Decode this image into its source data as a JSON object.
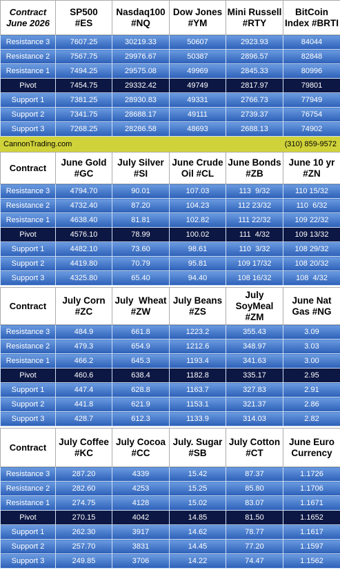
{
  "tables": [
    {
      "header": [
        [
          "Contract",
          "June 2026"
        ],
        [
          "SP500",
          "#ES"
        ],
        [
          "Nasdaq100",
          "#NQ"
        ],
        [
          "Dow Jones",
          "#YM"
        ],
        [
          "Mini Russell",
          "#RTY"
        ],
        [
          "BitCoin",
          "Index #BRTI"
        ]
      ],
      "rows": [
        {
          "label": "Resistance 3",
          "values": [
            "7607.25",
            "30219.33",
            "50607",
            "2923.93",
            "84044"
          ]
        },
        {
          "label": "Resistance 2",
          "values": [
            "7567.75",
            "29976.67",
            "50387",
            "2896.57",
            "82848"
          ]
        },
        {
          "label": "Resistance 1",
          "values": [
            "7494.25",
            "29575.08",
            "49969",
            "2845.33",
            "80996"
          ]
        },
        {
          "label": "Pivot",
          "values": [
            "7454.75",
            "29332.42",
            "49749",
            "2817.97",
            "79801"
          ]
        },
        {
          "label": "Support 1",
          "values": [
            "7381.25",
            "28930.83",
            "49331",
            "2766.73",
            "77949"
          ]
        },
        {
          "label": "Support 2",
          "values": [
            "7341.75",
            "28688.17",
            "49111",
            "2739.37",
            "76754"
          ]
        },
        {
          "label": "Support 3",
          "values": [
            "7268.25",
            "28286.58",
            "48693",
            "2688.13",
            "74902"
          ]
        }
      ]
    },
    {
      "header": [
        [
          "Contract"
        ],
        [
          "June Gold",
          "#GC"
        ],
        [
          "July Silver",
          "#SI"
        ],
        [
          "June Crude",
          "Oil #CL"
        ],
        [
          "June Bonds",
          "#ZB"
        ],
        [
          "June 10 yr",
          "#ZN"
        ]
      ],
      "rows": [
        {
          "label": "Resistance 3",
          "values": [
            "4794.70",
            "90.01",
            "107.03",
            "113  9/32",
            "110 15/32"
          ]
        },
        {
          "label": "Resistance 2",
          "values": [
            "4732.40",
            "87.20",
            "104.23",
            "112 23/32",
            "110  6/32"
          ]
        },
        {
          "label": "Resistance 1",
          "values": [
            "4638.40",
            "81.81",
            "102.82",
            "111 22/32",
            "109 22/32"
          ]
        },
        {
          "label": "Pivot",
          "values": [
            "4576.10",
            "78.99",
            "100.02",
            "111  4/32",
            "109 13/32"
          ]
        },
        {
          "label": "Support 1",
          "values": [
            "4482.10",
            "73.60",
            "98.61",
            "110  3/32",
            "108 29/32"
          ]
        },
        {
          "label": "Support 2",
          "values": [
            "4419.80",
            "70.79",
            "95.81",
            "109 17/32",
            "108 20/32"
          ]
        },
        {
          "label": "Support 3",
          "values": [
            "4325.80",
            "65.40",
            "94.40",
            "108 16/32",
            "108  4/32"
          ]
        }
      ]
    },
    {
      "header": [
        [
          "Contract"
        ],
        [
          "July Corn",
          "#ZC"
        ],
        [
          "July  Wheat",
          "#ZW"
        ],
        [
          "July Beans",
          "#ZS"
        ],
        [
          "July",
          "SoyMeal",
          "#ZM"
        ],
        [
          "June Nat",
          "Gas #NG"
        ]
      ],
      "rows": [
        {
          "label": "Resistance 3",
          "values": [
            "484.9",
            "661.8",
            "1223.2",
            "355.43",
            "3.09"
          ]
        },
        {
          "label": "Resistance 2",
          "values": [
            "479.3",
            "654.9",
            "1212.6",
            "348.97",
            "3.03"
          ]
        },
        {
          "label": "Resistance 1",
          "values": [
            "466.2",
            "645.3",
            "1193.4",
            "341.63",
            "3.00"
          ]
        },
        {
          "label": "Pivot",
          "values": [
            "460.6",
            "638.4",
            "1182.8",
            "335.17",
            "2.95"
          ]
        },
        {
          "label": "Support 1",
          "values": [
            "447.4",
            "628.8",
            "1163.7",
            "327.83",
            "2.91"
          ]
        },
        {
          "label": "Support 2",
          "values": [
            "441.8",
            "621.9",
            "1153.1",
            "321.37",
            "2.86"
          ]
        },
        {
          "label": "Support 3",
          "values": [
            "428.7",
            "612.3",
            "1133.9",
            "314.03",
            "2.82"
          ]
        }
      ]
    },
    {
      "header": [
        [
          "Contract"
        ],
        [
          "July Coffee",
          "#KC"
        ],
        [
          "July Cocoa",
          "#CC"
        ],
        [
          "July. Sugar",
          "#SB"
        ],
        [
          "July Cotton",
          "#CT"
        ],
        [
          "June Euro",
          "Currency"
        ]
      ],
      "rows": [
        {
          "label": "Resistance 3",
          "values": [
            "287.20",
            "4339",
            "15.42",
            "87.37",
            "1.1726"
          ]
        },
        {
          "label": "Resistance 2",
          "values": [
            "282.60",
            "4253",
            "15.25",
            "85.80",
            "1.1706"
          ]
        },
        {
          "label": "Resistance 1",
          "values": [
            "274.75",
            "4128",
            "15.02",
            "83.07",
            "1.1671"
          ]
        },
        {
          "label": "Pivot",
          "values": [
            "270.15",
            "4042",
            "14.85",
            "81.50",
            "1.1652"
          ]
        },
        {
          "label": "Support 1",
          "values": [
            "262.30",
            "3917",
            "14.62",
            "78.77",
            "1.1617"
          ]
        },
        {
          "label": "Support 2",
          "values": [
            "257.70",
            "3831",
            "14.45",
            "77.20",
            "1.1597"
          ]
        },
        {
          "label": "Support 3",
          "values": [
            "249.85",
            "3706",
            "14.22",
            "74.47",
            "1.1562"
          ]
        }
      ]
    }
  ],
  "banner": {
    "site": "CannonTrading.com",
    "phone": "(310) 859-9572"
  }
}
